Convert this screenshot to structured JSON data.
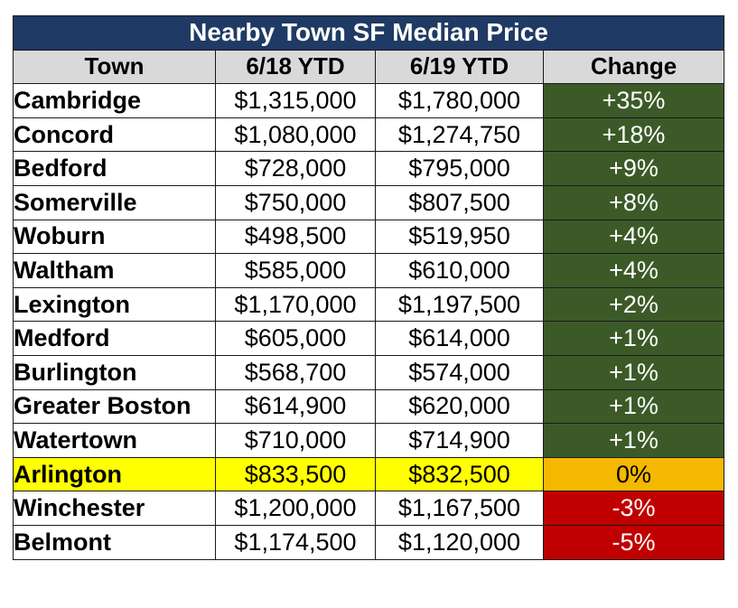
{
  "chart_data": {
    "type": "table",
    "title": "Nearby Town SF Median Price",
    "columns": [
      "Town",
      "6/18 YTD",
      "6/19 YTD",
      "Change"
    ],
    "rows": [
      {
        "town": "Cambridge",
        "p18": "$1,315,000",
        "p19": "$1,780,000",
        "change": "+35%",
        "change_value": 35,
        "status": "up"
      },
      {
        "town": "Concord",
        "p18": "$1,080,000",
        "p19": "$1,274,750",
        "change": "+18%",
        "change_value": 18,
        "status": "up"
      },
      {
        "town": "Bedford",
        "p18": "$728,000",
        "p19": "$795,000",
        "change": "+9%",
        "change_value": 9,
        "status": "up"
      },
      {
        "town": "Somerville",
        "p18": "$750,000",
        "p19": "$807,500",
        "change": "+8%",
        "change_value": 8,
        "status": "up"
      },
      {
        "town": "Woburn",
        "p18": "$498,500",
        "p19": "$519,950",
        "change": "+4%",
        "change_value": 4,
        "status": "up"
      },
      {
        "town": "Waltham",
        "p18": "$585,000",
        "p19": "$610,000",
        "change": "+4%",
        "change_value": 4,
        "status": "up"
      },
      {
        "town": "Lexington",
        "p18": "$1,170,000",
        "p19": "$1,197,500",
        "change": "+2%",
        "change_value": 2,
        "status": "up"
      },
      {
        "town": "Medford",
        "p18": "$605,000",
        "p19": "$614,000",
        "change": "+1%",
        "change_value": 1,
        "status": "up"
      },
      {
        "town": "Burlington",
        "p18": "$568,700",
        "p19": "$574,000",
        "change": "+1%",
        "change_value": 1,
        "status": "up"
      },
      {
        "town": "Greater Boston",
        "p18": "$614,900",
        "p19": "$620,000",
        "change": "+1%",
        "change_value": 1,
        "status": "up"
      },
      {
        "town": "Watertown",
        "p18": "$710,000",
        "p19": "$714,900",
        "change": "+1%",
        "change_value": 1,
        "status": "up"
      },
      {
        "town": "Arlington",
        "p18": "$833,500",
        "p19": "$832,500",
        "change": "0%",
        "change_value": 0,
        "status": "flat",
        "highlight": true
      },
      {
        "town": "Winchester",
        "p18": "$1,200,000",
        "p19": "$1,167,500",
        "change": "-3%",
        "change_value": -3,
        "status": "down"
      },
      {
        "town": "Belmont",
        "p18": "$1,174,500",
        "p19": "$1,120,000",
        "change": "-5%",
        "change_value": -5,
        "status": "down"
      }
    ]
  },
  "colors": {
    "title_bg": "#1f3a64",
    "header_bg": "#d9d9d9",
    "up": "#3c5a28",
    "flat": "#f5b800",
    "down": "#c00000",
    "highlight_row": "#ffff00"
  }
}
